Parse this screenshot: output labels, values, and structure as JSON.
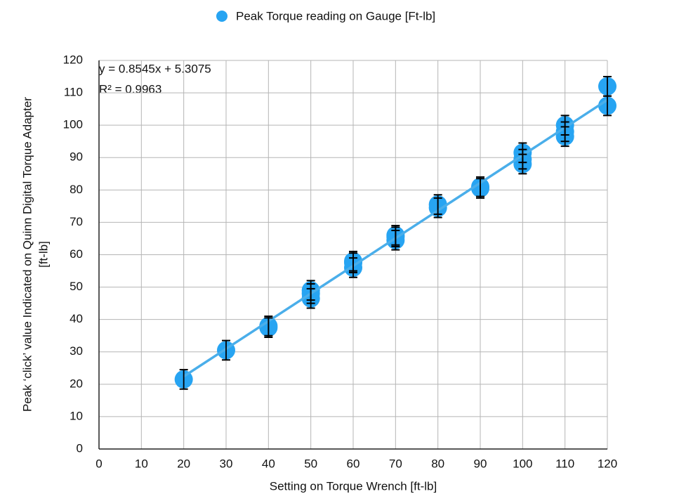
{
  "chart_data": {
    "type": "scatter",
    "xlabel": "Setting on Torque Wrench [ft-lb]",
    "ylabel": [
      "Peak ‘click’ value  Indicated on Quinn Digital Torque Adapter",
      "[ft-lb]"
    ],
    "xlim": [
      0,
      120
    ],
    "xticks": [
      0,
      10,
      20,
      30,
      40,
      50,
      60,
      70,
      80,
      90,
      100,
      110,
      120
    ],
    "ylim": [
      0,
      120
    ],
    "yticks": [
      0,
      10,
      20,
      30,
      40,
      50,
      60,
      70,
      80,
      90,
      100,
      110,
      120
    ],
    "grid": true,
    "legend": "top",
    "series": [
      {
        "name": "Peak Torque reading on Gauge [Ft-lb]",
        "color": "#27a4f2",
        "x": [
          20,
          30,
          40,
          40,
          50,
          50,
          50,
          60,
          60,
          60,
          70,
          70,
          70,
          80,
          80,
          90,
          90,
          100,
          100,
          100,
          110,
          110,
          110,
          120,
          120
        ],
        "values": [
          21.5,
          30.5,
          38,
          37.5,
          49,
          46.5,
          48,
          58,
          56,
          57.5,
          66,
          64.5,
          65.5,
          75.5,
          74.5,
          81,
          80.5,
          91.5,
          88,
          89.5,
          100,
          98,
          96.5,
          112,
          106
        ],
        "errors": [
          3,
          3,
          3,
          3,
          3,
          3,
          3,
          3,
          3,
          3,
          3,
          3,
          3,
          3,
          3,
          3,
          3,
          3,
          3,
          3,
          3,
          3,
          3,
          3,
          3
        ]
      }
    ],
    "trendline": {
      "color": "#4aaeea",
      "x": [
        20,
        120
      ],
      "values": [
        22.4,
        107.8
      ],
      "equation": "y = 0.8545x + 5.3075",
      "r2": "R² = 0.9963"
    }
  }
}
